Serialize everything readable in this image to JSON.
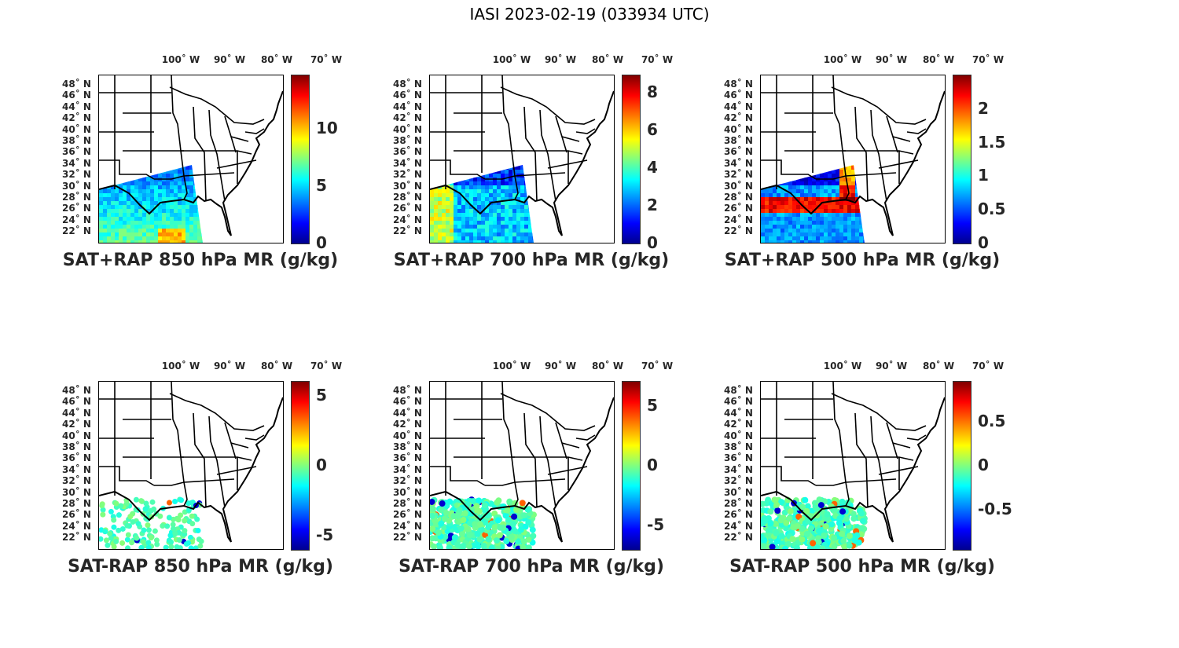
{
  "figure": {
    "title": "IASI 2023-02-19 (033934 UTC)"
  },
  "lon_labels": [
    "100˚ W",
    "90˚ W",
    "80˚ W",
    "70˚ W"
  ],
  "lat_labels": [
    "48˚ N",
    "46˚ N",
    "44˚ N",
    "42˚ N",
    "40˚ N",
    "38˚ N",
    "36˚ N",
    "34˚ N",
    "32˚ N",
    "30˚ N",
    "28˚ N",
    "26˚ N",
    "24˚ N",
    "22˚ N"
  ],
  "colormap": "jet",
  "panels": [
    {
      "title": "SAT+RAP 850 hPa MR (g/kg)",
      "cbar_ticks": [
        "0",
        "5",
        "10"
      ],
      "cbar_tick_values": [
        0,
        5,
        10
      ],
      "cbar_range": [
        0,
        14.7
      ],
      "kind": "swath"
    },
    {
      "title": "SAT+RAP 700 hPa MR (g/kg)",
      "cbar_ticks": [
        "0",
        "2",
        "4",
        "6",
        "8"
      ],
      "cbar_tick_values": [
        0,
        2,
        4,
        6,
        8
      ],
      "cbar_range": [
        0,
        8.9
      ],
      "kind": "swath"
    },
    {
      "title": "SAT+RAP 500 hPa MR (g/kg)",
      "cbar_ticks": [
        "0",
        "0.5",
        "1",
        "1.5",
        "2"
      ],
      "cbar_tick_values": [
        0,
        0.5,
        1,
        1.5,
        2
      ],
      "cbar_range": [
        0,
        2.5
      ],
      "kind": "swath-hot"
    },
    {
      "title": "SAT-RAP 850 hPa MR (g/kg)",
      "cbar_ticks": [
        "-5",
        "0",
        "5"
      ],
      "cbar_tick_values": [
        -5,
        0,
        5
      ],
      "cbar_range": [
        -6,
        6
      ],
      "kind": "diff-sparse"
    },
    {
      "title": "SAT-RAP 700 hPa MR (g/kg)",
      "cbar_ticks": [
        "-5",
        "0",
        "5"
      ],
      "cbar_tick_values": [
        -5,
        0,
        5
      ],
      "cbar_range": [
        -7,
        7
      ],
      "kind": "diff"
    },
    {
      "title": "SAT-RAP 500 hPa MR (g/kg)",
      "cbar_ticks": [
        "-0.5",
        "0",
        "0.5"
      ],
      "cbar_tick_values": [
        -0.5,
        0,
        0.5
      ],
      "cbar_range": [
        -0.95,
        0.95
      ],
      "kind": "diff"
    }
  ]
}
